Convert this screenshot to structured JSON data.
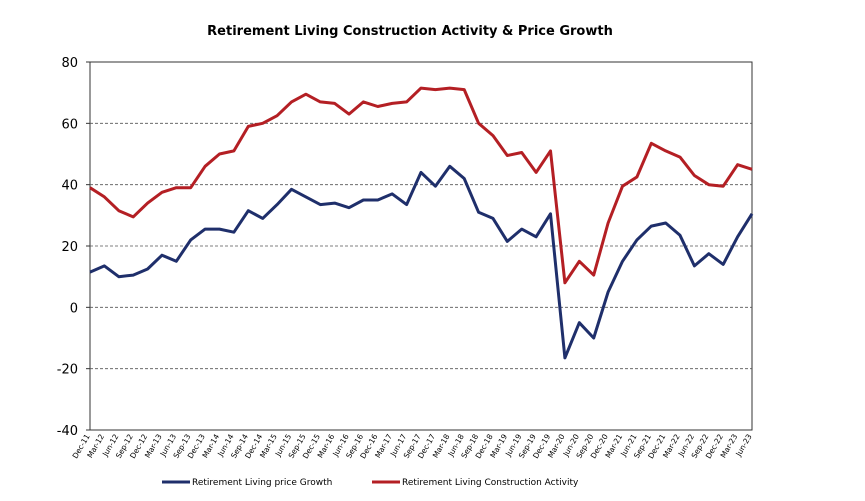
{
  "chart_data": {
    "type": "line",
    "title": "Retirement Living Construction Activity & Price Growth",
    "categories": [
      "Dec-11",
      "Mar-12",
      "Jun-12",
      "Sep-12",
      "Dec-12",
      "Mar-13",
      "Jun-13",
      "Sep-13",
      "Dec-13",
      "Mar-14",
      "Jun-14",
      "Sep-14",
      "Dec-14",
      "Mar-15",
      "Jun-15",
      "Sep-15",
      "Dec-15",
      "Mar-16",
      "Jun-16",
      "Sep-16",
      "Dec-16",
      "Mar-17",
      "Jun-17",
      "Sep-17",
      "Dec-17",
      "Mar-18",
      "Jun-18",
      "Sep-18",
      "Dec-18",
      "Mar-19",
      "Jun-19",
      "Sep-19",
      "Dec-19",
      "Mar-20",
      "Jun-20",
      "Sep-20",
      "Dec-20",
      "Mar-21",
      "Jun-21",
      "Sep-21",
      "Dec-21",
      "Mar-22",
      "Jun-22",
      "Sep-22",
      "Dec-22",
      "Mar-23",
      "Jun-23"
    ],
    "series": [
      {
        "name": "Retirement Living price Growth",
        "color": "#1f2f6b",
        "values": [
          11.5,
          13.5,
          10,
          10.5,
          12.5,
          17,
          15,
          22,
          25.5,
          25.5,
          24.5,
          31.5,
          29,
          33.5,
          38.5,
          36,
          33.5,
          34,
          32.5,
          35,
          35,
          37,
          33.5,
          44,
          39.5,
          46,
          42,
          31,
          29,
          21.5,
          25.5,
          23,
          30.5,
          -16.5,
          -5,
          -10,
          5,
          15,
          22,
          26.5,
          27.5,
          23.5,
          13.5,
          17.5,
          14,
          23,
          30.5
        ]
      },
      {
        "name": "Retirement Living Construction Activity",
        "color": "#b41f24",
        "values": [
          39,
          36,
          31.5,
          29.5,
          34,
          37.5,
          39,
          39,
          46,
          50,
          51,
          59,
          60,
          62.5,
          67,
          69.5,
          67,
          66.5,
          63,
          67,
          65.5,
          66.5,
          67,
          71.5,
          71,
          71.5,
          71,
          60,
          56,
          49.5,
          50.5,
          44,
          51,
          8,
          15,
          10.5,
          27.5,
          39.5,
          42.5,
          53.5,
          51,
          49,
          43,
          40,
          39.5,
          46.5,
          45
        ]
      }
    ],
    "ylim": [
      -40,
      80
    ],
    "yticks": [
      -40,
      -20,
      0,
      20,
      40,
      60,
      80
    ],
    "grid": true
  }
}
